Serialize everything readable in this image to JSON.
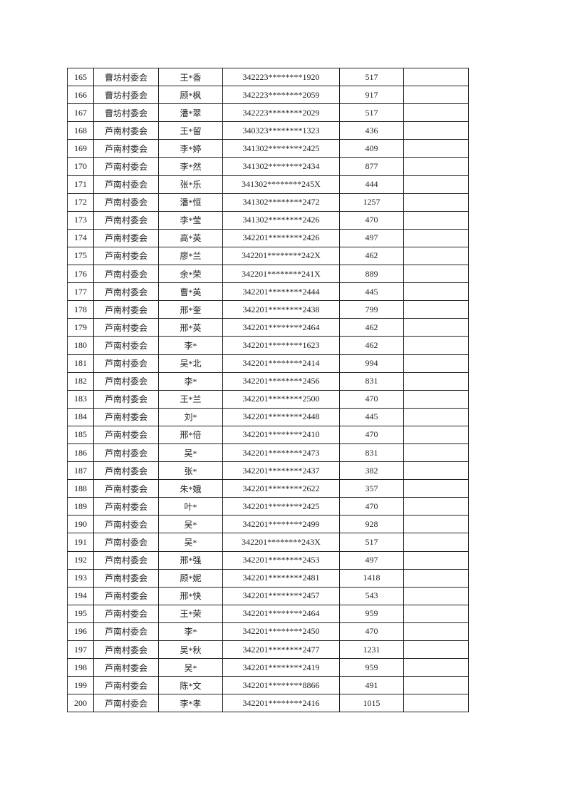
{
  "table": {
    "rows": [
      [
        "165",
        "曹坊村委会",
        "王*香",
        "342223********1920",
        "517",
        ""
      ],
      [
        "166",
        "曹坊村委会",
        "顾*枫",
        "342223********2059",
        "917",
        ""
      ],
      [
        "167",
        "曹坊村委会",
        "潘*翠",
        "342223********2029",
        "517",
        ""
      ],
      [
        "168",
        "芦南村委会",
        "王*留",
        "340323********1323",
        "436",
        ""
      ],
      [
        "169",
        "芦南村委会",
        "李*婷",
        "341302********2425",
        "409",
        ""
      ],
      [
        "170",
        "芦南村委会",
        "李*然",
        "341302********2434",
        "877",
        ""
      ],
      [
        "171",
        "芦南村委会",
        "张*乐",
        "341302********245X",
        "444",
        ""
      ],
      [
        "172",
        "芦南村委会",
        "潘*恒",
        "341302********2472",
        "1257",
        ""
      ],
      [
        "173",
        "芦南村委会",
        "李*莹",
        "341302********2426",
        "470",
        ""
      ],
      [
        "174",
        "芦南村委会",
        "高*英",
        "342201********2426",
        "497",
        ""
      ],
      [
        "175",
        "芦南村委会",
        "廖*兰",
        "342201********242X",
        "462",
        ""
      ],
      [
        "176",
        "芦南村委会",
        "余*荣",
        "342201********241X",
        "889",
        ""
      ],
      [
        "177",
        "芦南村委会",
        "曹*英",
        "342201********2444",
        "445",
        ""
      ],
      [
        "178",
        "芦南村委会",
        "邢*奎",
        "342201********2438",
        "799",
        ""
      ],
      [
        "179",
        "芦南村委会",
        "邢*英",
        "342201********2464",
        "462",
        ""
      ],
      [
        "180",
        "芦南村委会",
        "李*",
        "342201********1623",
        "462",
        ""
      ],
      [
        "181",
        "芦南村委会",
        "吴*北",
        "342201********2414",
        "994",
        ""
      ],
      [
        "182",
        "芦南村委会",
        "李*",
        "342201********2456",
        "831",
        ""
      ],
      [
        "183",
        "芦南村委会",
        "王*兰",
        "342201********2500",
        "470",
        ""
      ],
      [
        "184",
        "芦南村委会",
        "刘*",
        "342201********2448",
        "445",
        ""
      ],
      [
        "185",
        "芦南村委会",
        "邢*倍",
        "342201********2410",
        "470",
        ""
      ],
      [
        "186",
        "芦南村委会",
        "吴*",
        "342201********2473",
        "831",
        ""
      ],
      [
        "187",
        "芦南村委会",
        "张*",
        "342201********2437",
        "382",
        ""
      ],
      [
        "188",
        "芦南村委会",
        "朱*娥",
        "342201********2622",
        "357",
        ""
      ],
      [
        "189",
        "芦南村委会",
        "叶*",
        "342201********2425",
        "470",
        ""
      ],
      [
        "190",
        "芦南村委会",
        "吴*",
        "342201********2499",
        "928",
        ""
      ],
      [
        "191",
        "芦南村委会",
        "吴*",
        "342201********243X",
        "517",
        ""
      ],
      [
        "192",
        "芦南村委会",
        "邢*强",
        "342201********2453",
        "497",
        ""
      ],
      [
        "193",
        "芦南村委会",
        "顾*妮",
        "342201********2481",
        "1418",
        ""
      ],
      [
        "194",
        "芦南村委会",
        "邢*快",
        "342201********2457",
        "543",
        ""
      ],
      [
        "195",
        "芦南村委会",
        "王*荣",
        "342201********2464",
        "959",
        ""
      ],
      [
        "196",
        "芦南村委会",
        "李*",
        "342201********2450",
        "470",
        ""
      ],
      [
        "197",
        "芦南村委会",
        "吴*秋",
        "342201********2477",
        "1231",
        ""
      ],
      [
        "198",
        "芦南村委会",
        "吴*",
        "342201********2419",
        "959",
        ""
      ],
      [
        "199",
        "芦南村委会",
        "陈*文",
        "342201********8866",
        "491",
        ""
      ],
      [
        "200",
        "芦南村委会",
        "李*孝",
        "342201********2416",
        "1015",
        ""
      ]
    ]
  }
}
